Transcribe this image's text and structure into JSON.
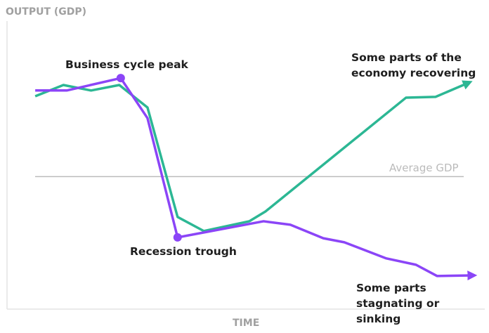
{
  "chart_data": {
    "type": "line",
    "ylabel": "OUTPUT (GDP)",
    "xlabel": "TIME",
    "xlim": [
      0,
      100
    ],
    "ylim": [
      0,
      100
    ],
    "reference_line": {
      "label": "Average GDP",
      "value": 46,
      "color": "#bbbbbb"
    },
    "annotations": [
      "Business cycle peak",
      "Recession trough"
    ],
    "series": [
      {
        "name": "Some parts of the economy recovering",
        "color": "#2cb794",
        "x": [
          5.9,
          11.8,
          17.6,
          23.5,
          29.4,
          35.7,
          41.2,
          50.7,
          54.1,
          83.5,
          89.7,
          96.5
        ],
        "values": [
          73.9,
          77.8,
          75.9,
          77.8,
          70,
          32,
          27.1,
          30.5,
          33.9,
          73.4,
          73.7,
          78.5
        ]
      },
      {
        "name": "Some parts stagnating or sinking",
        "color": "#8b45f7",
        "x": [
          5.9,
          12.5,
          23.8,
          29.4,
          35.7,
          53.7,
          59.3,
          66.2,
          70.6,
          79.4,
          85.6,
          90,
          97.4
        ],
        "values": [
          75.9,
          75.9,
          80.2,
          66.3,
          24.9,
          30.5,
          29.3,
          24.6,
          23.2,
          17.6,
          15.4,
          11.5,
          11.7
        ]
      }
    ]
  }
}
